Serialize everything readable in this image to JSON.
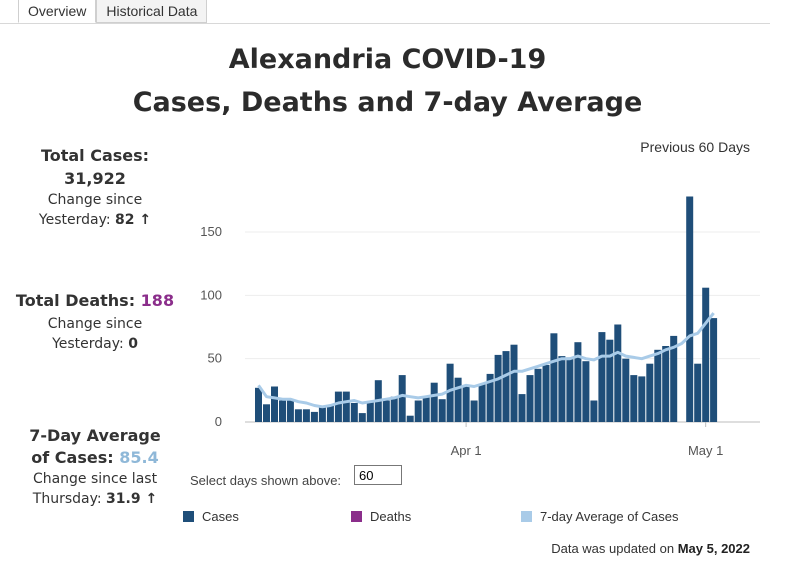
{
  "tabs": [
    "Overview",
    "Historical Data"
  ],
  "title": {
    "line1": "Alexandria COVID-19",
    "line2": "Cases, Deaths and 7-day Average"
  },
  "stats": {
    "total_cases_label": "Total Cases:",
    "total_cases_value": "31,922",
    "cases_change_line1": "Change since",
    "cases_change_prefix": "Yesterday:",
    "cases_change_value": "82 ↑",
    "total_deaths_label": "Total Deaths:",
    "total_deaths_value": "188",
    "deaths_change_line1": "Change since",
    "deaths_change_prefix": "Yesterday:",
    "deaths_change_value": "0",
    "avg_label_line1": "7-Day Average",
    "avg_label_line2": "of Cases:",
    "avg_value": "85.4",
    "avg_change_line1": "Change since last",
    "avg_change_prefix": "Thursday:",
    "avg_change_value": "31.9 ↑"
  },
  "period_label": "Previous 60 Days",
  "selector": {
    "label": "Select days shown above:",
    "value": "60"
  },
  "legend": {
    "cases": "Cases",
    "deaths": "Deaths",
    "avg": "7-day Average of Cases"
  },
  "updated": {
    "prefix": "Data was updated on",
    "date": "May 5, 2022"
  },
  "colors": {
    "cases": "#1f4e79",
    "deaths": "#8b2e8b",
    "avg": "#a9cbe8"
  },
  "chart_data": {
    "type": "bar",
    "dates": [
      "2022-03-06",
      "2022-03-07",
      "2022-03-08",
      "2022-03-09",
      "2022-03-10",
      "2022-03-11",
      "2022-03-12",
      "2022-03-13",
      "2022-03-14",
      "2022-03-15",
      "2022-03-16",
      "2022-03-17",
      "2022-03-18",
      "2022-03-19",
      "2022-03-20",
      "2022-03-21",
      "2022-03-22",
      "2022-03-23",
      "2022-03-24",
      "2022-03-25",
      "2022-03-26",
      "2022-03-27",
      "2022-03-28",
      "2022-03-29",
      "2022-03-30",
      "2022-03-31",
      "2022-04-01",
      "2022-04-02",
      "2022-04-03",
      "2022-04-04",
      "2022-04-05",
      "2022-04-06",
      "2022-04-07",
      "2022-04-08",
      "2022-04-09",
      "2022-04-10",
      "2022-04-11",
      "2022-04-12",
      "2022-04-13",
      "2022-04-14",
      "2022-04-15",
      "2022-04-16",
      "2022-04-17",
      "2022-04-18",
      "2022-04-19",
      "2022-04-20",
      "2022-04-21",
      "2022-04-22",
      "2022-04-23",
      "2022-04-24",
      "2022-04-25",
      "2022-04-26",
      "2022-04-27",
      "2022-04-28",
      "2022-04-29",
      "2022-04-30",
      "2022-05-01",
      "2022-05-02",
      "2022-05-03",
      "2022-05-04"
    ],
    "series": [
      {
        "name": "Cases",
        "values": [
          27,
          14,
          28,
          17,
          17,
          10,
          10,
          8,
          12,
          13,
          24,
          24,
          15,
          7,
          16,
          33,
          17,
          20,
          37,
          5,
          17,
          20,
          31,
          18,
          46,
          35,
          29,
          17,
          30,
          38,
          53,
          56,
          61,
          22,
          37,
          42,
          45,
          70,
          52,
          51,
          63,
          48,
          17,
          71,
          65,
          77,
          50,
          37,
          36,
          46,
          57,
          60,
          68,
          0,
          178,
          46,
          106,
          82,
          0,
          0
        ]
      },
      {
        "name": "Deaths",
        "values": [
          0,
          0,
          0,
          0,
          0,
          0,
          0,
          0,
          0,
          0,
          0,
          0,
          0,
          0,
          0,
          0,
          0,
          0,
          0,
          0,
          0,
          0,
          0,
          0,
          0,
          0,
          0,
          0,
          0,
          0,
          0,
          0,
          0,
          0,
          0,
          0,
          0,
          0,
          0,
          0,
          0,
          0,
          0,
          0,
          0,
          0,
          0,
          0,
          0,
          0,
          0,
          0,
          0,
          0,
          0,
          0,
          0,
          0,
          0,
          0
        ]
      },
      {
        "name": "7-day Average of Cases",
        "values": [
          29,
          20,
          19,
          18,
          18,
          16,
          15,
          13,
          12,
          13,
          15,
          16,
          17,
          15,
          16,
          17,
          18,
          19,
          21,
          20,
          19,
          20,
          21,
          22,
          25,
          27,
          29,
          28,
          30,
          32,
          34,
          37,
          40,
          40,
          42,
          44,
          46,
          48,
          50,
          50,
          52,
          50,
          49,
          52,
          52,
          55,
          52,
          51,
          50,
          52,
          54,
          57,
          59,
          62,
          68,
          70,
          78,
          86,
          null,
          null
        ]
      }
    ],
    "x_ticks": [
      {
        "date": "2022-04-01",
        "label": "Apr 1"
      },
      {
        "date": "2022-05-01",
        "label": "May 1"
      }
    ],
    "y_ticks": [
      0,
      50,
      100,
      150
    ],
    "ylim": [
      0,
      180
    ],
    "grid": "horizontal"
  }
}
